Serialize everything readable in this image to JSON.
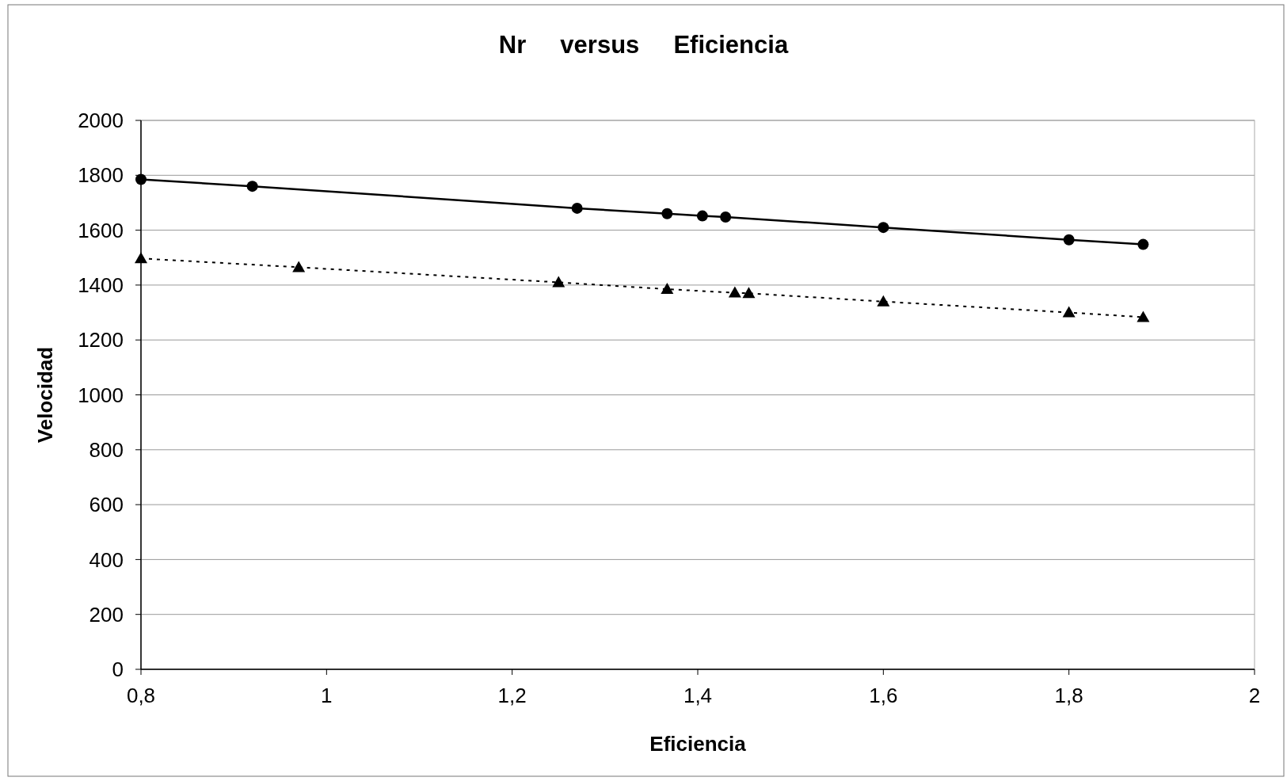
{
  "chart_data": {
    "type": "line",
    "title": "Nr     versus     Eficiencia",
    "xlabel": "Eficiencia",
    "ylabel": "Velocidad",
    "series": [
      {
        "color": "#000000",
        "marker": "circle",
        "line_style": "solid",
        "x": [
          0.8,
          0.92,
          1.27,
          1.367,
          1.405,
          1.43,
          1.6,
          1.8,
          1.88
        ],
        "values": [
          1785,
          1760,
          1680,
          1660,
          1652,
          1648,
          1610,
          1565,
          1548
        ]
      },
      {
        "color": "#000000",
        "marker": "triangle",
        "line_style": "dotted",
        "x": [
          0.8,
          0.97,
          1.25,
          1.367,
          1.44,
          1.455,
          1.6,
          1.8,
          1.88
        ],
        "values": [
          1497,
          1465,
          1410,
          1385,
          1372,
          1370,
          1340,
          1300,
          1283
        ]
      }
    ],
    "xlim": [
      0.8,
      2
    ],
    "xticks": [
      {
        "value": 0.8,
        "label": "0,8"
      },
      1,
      {
        "value": 1.2,
        "label": "1,2"
      },
      {
        "value": 1.4,
        "label": "1,4"
      },
      {
        "value": 1.6,
        "label": "1,6"
      },
      {
        "value": 1.8,
        "label": "1,8"
      },
      2
    ],
    "ylim": [
      0,
      2000
    ],
    "yticks": [
      0,
      200,
      400,
      600,
      800,
      1000,
      1200,
      1400,
      1600,
      1800,
      2000
    ],
    "grid": "y"
  }
}
